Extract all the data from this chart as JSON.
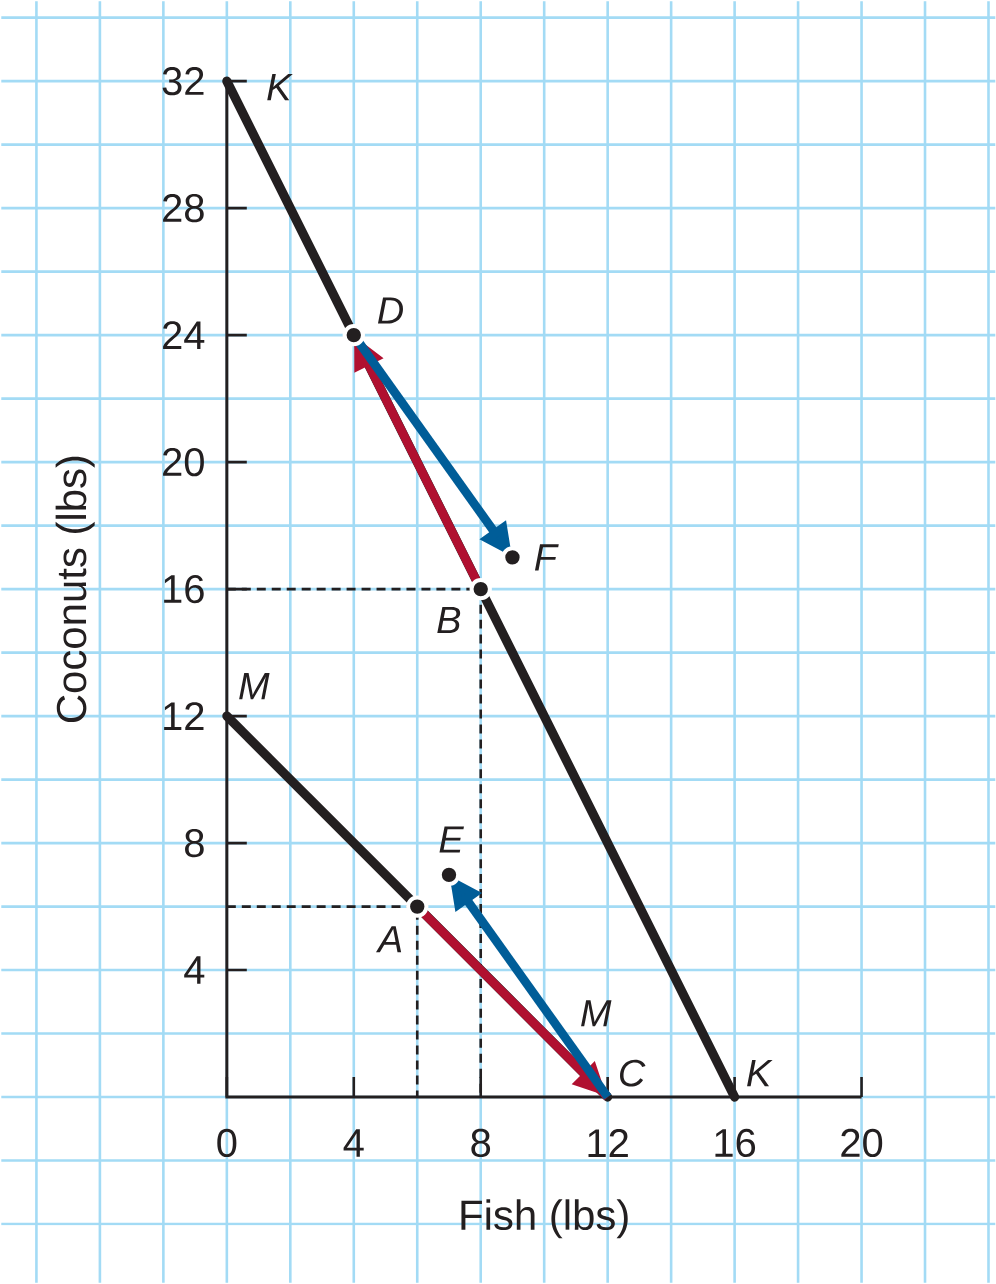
{
  "chart_data": {
    "type": "line",
    "xlabel": "Fish (lbs)",
    "ylabel": "Coconuts (lbs)",
    "xlim": [
      0,
      20
    ],
    "ylim": [
      0,
      32
    ],
    "xticks": [
      0,
      4,
      8,
      12,
      16,
      20
    ],
    "yticks": [
      4,
      8,
      12,
      16,
      20,
      24,
      28,
      32
    ],
    "grid": true,
    "series": [
      {
        "name": "K",
        "color": "#231f20",
        "x": [
          0,
          16
        ],
        "values": [
          32,
          0
        ]
      },
      {
        "name": "M",
        "color": "#231f20",
        "x": [
          0,
          12
        ],
        "values": [
          12,
          0
        ]
      },
      {
        "color": "#231f20",
        "line_style": "dashed",
        "x": [
          0,
          8,
          8
        ],
        "values": [
          16,
          16,
          0
        ]
      },
      {
        "color": "#231f20",
        "line_style": "dashed",
        "x": [
          0,
          6,
          6
        ],
        "values": [
          6,
          6,
          0
        ]
      },
      {
        "color": "#b01030",
        "x": [
          8,
          4
        ],
        "values": [
          16,
          24
        ]
      },
      {
        "color": "#005d98",
        "x": [
          4,
          9
        ],
        "values": [
          24,
          17
        ]
      },
      {
        "color": "#b01030",
        "x": [
          6,
          12
        ],
        "values": [
          6,
          0
        ]
      },
      {
        "color": "#005d98",
        "x": [
          12,
          7
        ],
        "values": [
          0,
          7
        ]
      },
      {
        "type": "scatter",
        "color": "#231f20",
        "marker": "circle",
        "x": [
          4,
          8,
          9,
          6,
          7
        ],
        "values": [
          24,
          16,
          17,
          6,
          7
        ]
      }
    ],
    "annotations": [
      {
        "text": "D",
        "x": 4,
        "y": 24
      },
      {
        "text": "F",
        "x": 9,
        "y": 17
      },
      {
        "text": "B",
        "x": 8,
        "y": 16
      },
      {
        "text": "E",
        "x": 7,
        "y": 7
      },
      {
        "text": "A",
        "x": 6,
        "y": 6
      },
      {
        "text": "C",
        "x": 12,
        "y": 0
      }
    ]
  }
}
